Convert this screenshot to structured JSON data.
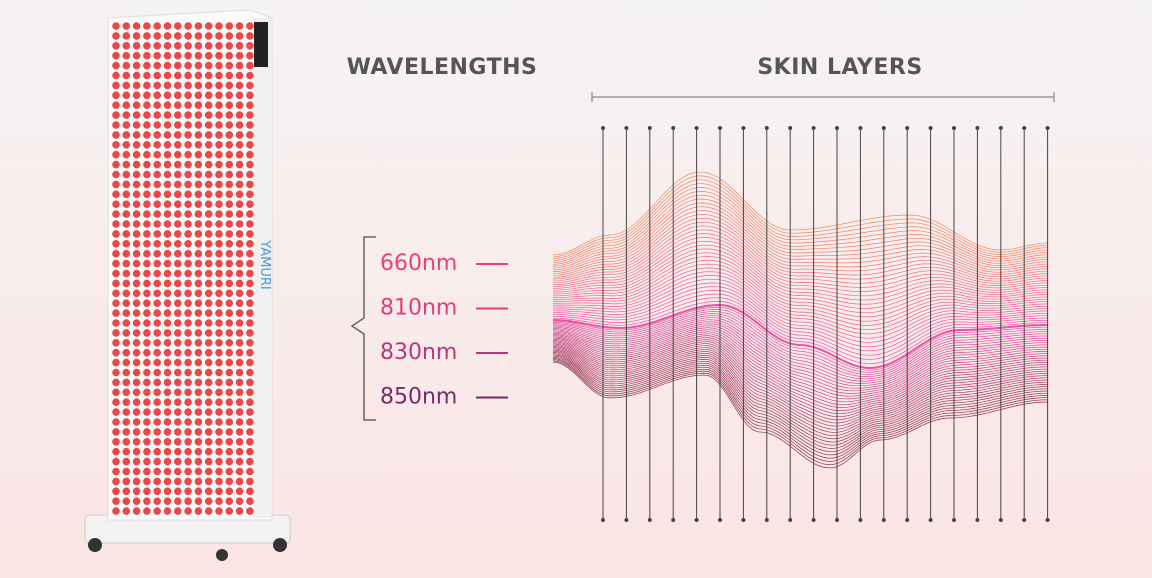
{
  "header": {
    "left": "WAVELENGTHS",
    "right": "SKIN LAYERS"
  },
  "device": {
    "brand": "YAMURI"
  },
  "wavelengths": [
    {
      "label": "660nm",
      "color": "#e8456e"
    },
    {
      "label": "810nm",
      "color": "#e0407a"
    },
    {
      "label": "830nm",
      "color": "#b8357f"
    },
    {
      "label": "850nm",
      "color": "#7a2a6a"
    }
  ]
}
